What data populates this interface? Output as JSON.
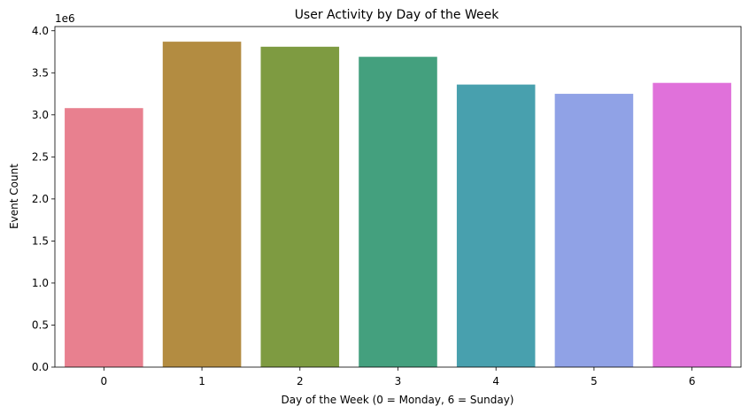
{
  "chart_data": {
    "type": "bar",
    "title": "User Activity by Day of the Week",
    "xlabel": "Day of the Week (0 = Monday, 6 = Sunday)",
    "ylabel": "Event Count",
    "y_offset_label": "1e6",
    "categories": [
      "0",
      "1",
      "2",
      "3",
      "4",
      "5",
      "6"
    ],
    "values": [
      3080000,
      3870000,
      3810000,
      3690000,
      3360000,
      3250000,
      3380000
    ],
    "colors": [
      "#e8808f",
      "#b38c41",
      "#7e9b41",
      "#44a07e",
      "#48a0ae",
      "#90a2e6",
      "#e071da"
    ],
    "ylim": [
      0,
      4050000
    ],
    "yticks": [
      0,
      500000,
      1000000,
      1500000,
      2000000,
      2500000,
      3000000,
      3500000,
      4000000
    ],
    "ytick_labels": [
      "0.0",
      "0.5",
      "1.0",
      "1.5",
      "2.0",
      "2.5",
      "3.0",
      "3.5",
      "4.0"
    ],
    "grid": false,
    "legend": "none"
  }
}
